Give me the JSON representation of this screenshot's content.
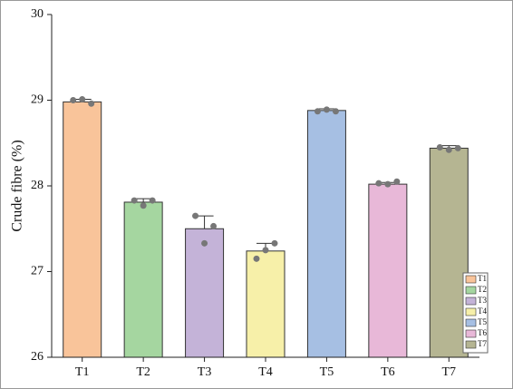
{
  "chart_data": {
    "type": "bar",
    "y_label": "Crude fibre (%)",
    "categories": [
      "T1",
      "T2",
      "T3",
      "T4",
      "T5",
      "T6",
      "T7"
    ],
    "values": [
      28.98,
      27.81,
      27.5,
      27.24,
      28.88,
      28.02,
      28.44
    ],
    "errors": [
      0.03,
      0.04,
      0.15,
      0.09,
      0.02,
      0.02,
      0.03
    ],
    "points": [
      [
        29.0,
        29.01,
        28.96
      ],
      [
        27.83,
        27.77,
        27.83
      ],
      [
        27.65,
        27.33,
        27.53
      ],
      [
        27.15,
        27.25,
        27.33
      ],
      [
        28.87,
        28.89,
        28.87
      ],
      [
        28.03,
        28.02,
        28.05
      ],
      [
        28.45,
        28.42,
        28.44
      ]
    ],
    "colors": [
      "#f9c49a",
      "#a5d6a0",
      "#c4b3d8",
      "#f7f0a9",
      "#a6bfe3",
      "#e8b8d8",
      "#b5b592"
    ],
    "ylim": [
      26,
      30
    ],
    "yticks": [
      26,
      27,
      28,
      29,
      30
    ],
    "legend": "bottom-right"
  }
}
